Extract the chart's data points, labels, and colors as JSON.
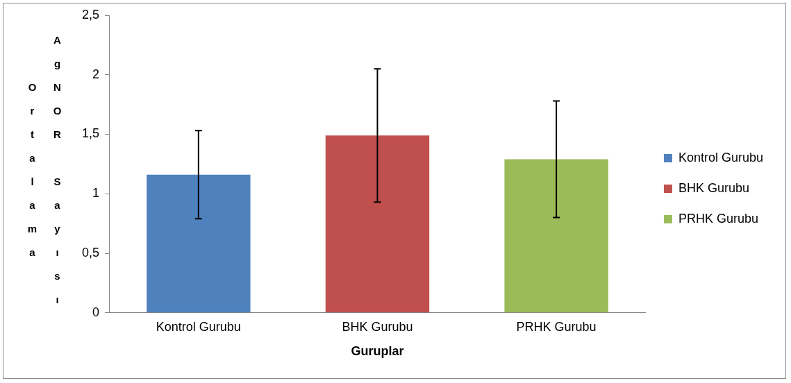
{
  "chart_data": {
    "type": "bar",
    "xlabel": "Guruplar",
    "ylabel": "Ortalama AgNOR Sayısı",
    "categories": [
      "Kontrol Gurubu",
      "BHK Gurubu",
      "PRHK Gurubu"
    ],
    "series": [
      {
        "name": "Kontrol Gurubu",
        "color": "#4f81bd",
        "values": [
          1.16,
          null,
          null
        ],
        "errors": [
          0.37,
          null,
          null
        ]
      },
      {
        "name": "BHK Gurubu",
        "color": "#c0504d",
        "values": [
          null,
          1.49,
          null
        ],
        "errors": [
          null,
          0.56,
          null
        ]
      },
      {
        "name": "PRHK Gurubu",
        "color": "#9bbb59",
        "values": [
          null,
          null,
          1.29
        ],
        "errors": [
          null,
          null,
          0.49
        ]
      }
    ],
    "ylim": [
      0,
      2.5
    ],
    "yticks": [
      {
        "value": 0,
        "label": "0"
      },
      {
        "value": 0.5,
        "label": "0,5"
      },
      {
        "value": 1,
        "label": "1"
      },
      {
        "value": 1.5,
        "label": "1,5"
      },
      {
        "value": 2,
        "label": "2"
      },
      {
        "value": 2.5,
        "label": "2,5"
      }
    ],
    "grid": false,
    "legend": "right"
  }
}
